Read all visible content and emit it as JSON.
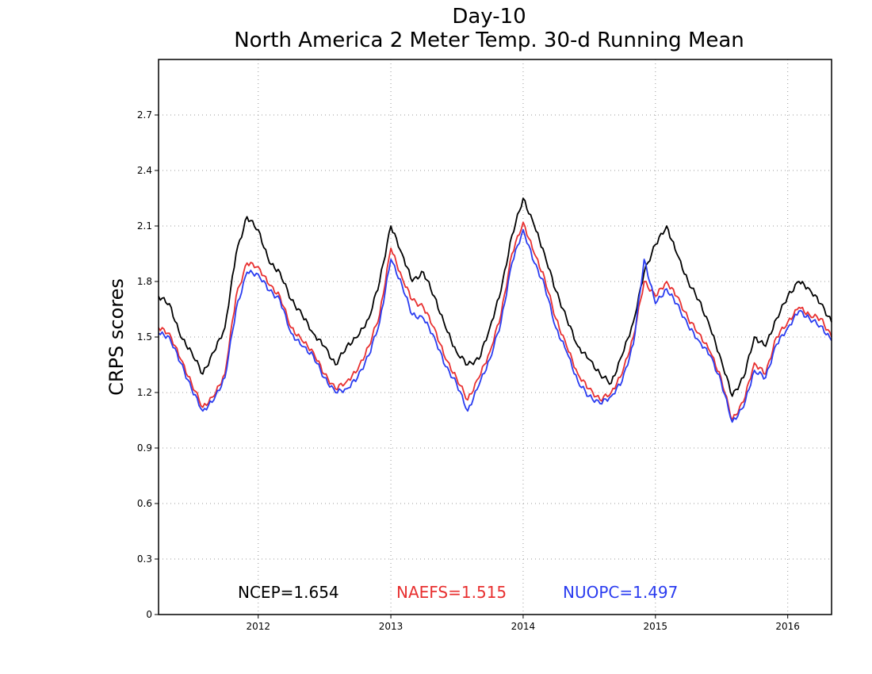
{
  "chart_data": {
    "type": "line",
    "title": "Day-10",
    "subtitle": "North America 2 Meter Temp. 30-d Running Mean",
    "xlabel": "",
    "ylabel": "CRPS scores",
    "ylim": [
      0,
      3.0
    ],
    "xlim": [
      "2011-04-01",
      "2016-05-01"
    ],
    "grid": true,
    "x_ticks": [
      "2012",
      "2013",
      "2014",
      "2015",
      "2016"
    ],
    "y_ticks": [
      "0",
      "0.3",
      "0.6",
      "0.9",
      "1.2",
      "1.5",
      "1.8",
      "2.1",
      "2.4",
      "2.7"
    ],
    "summary": [
      {
        "text": "NCEP=1.654",
        "color": "#000000"
      },
      {
        "text": "NAEFS=1.515",
        "color": "#e83030"
      },
      {
        "text": "NUOPC=1.497",
        "color": "#2a3cf0"
      }
    ],
    "x": [
      "2011-04-01",
      "2011-05-01",
      "2011-06-01",
      "2011-07-01",
      "2011-08-01",
      "2011-09-01",
      "2011-10-01",
      "2011-11-01",
      "2011-12-01",
      "2012-01-01",
      "2012-02-01",
      "2012-03-01",
      "2012-04-01",
      "2012-05-01",
      "2012-06-01",
      "2012-07-01",
      "2012-08-01",
      "2012-09-01",
      "2012-10-01",
      "2012-11-01",
      "2012-12-01",
      "2013-01-01",
      "2013-02-01",
      "2013-03-01",
      "2013-04-01",
      "2013-05-01",
      "2013-06-01",
      "2013-07-01",
      "2013-08-01",
      "2013-09-01",
      "2013-10-01",
      "2013-11-01",
      "2013-12-01",
      "2014-01-01",
      "2014-02-01",
      "2014-03-01",
      "2014-04-01",
      "2014-05-01",
      "2014-06-01",
      "2014-07-01",
      "2014-08-01",
      "2014-09-01",
      "2014-10-01",
      "2014-11-01",
      "2014-12-01",
      "2015-01-01",
      "2015-02-01",
      "2015-03-01",
      "2015-04-01",
      "2015-05-01",
      "2015-06-01",
      "2015-07-01",
      "2015-08-01",
      "2015-09-01",
      "2015-10-01",
      "2015-11-01",
      "2015-12-01",
      "2016-01-01",
      "2016-02-01",
      "2016-03-01",
      "2016-04-01",
      "2016-05-01"
    ],
    "series": [
      {
        "name": "NCEP",
        "color": "#000000",
        "values": [
          1.72,
          1.68,
          1.5,
          1.42,
          1.3,
          1.42,
          1.55,
          1.95,
          2.15,
          2.08,
          1.9,
          1.85,
          1.7,
          1.62,
          1.52,
          1.45,
          1.35,
          1.45,
          1.5,
          1.6,
          1.8,
          2.1,
          1.95,
          1.8,
          1.85,
          1.72,
          1.55,
          1.42,
          1.35,
          1.38,
          1.55,
          1.75,
          2.05,
          2.25,
          2.1,
          1.95,
          1.75,
          1.6,
          1.45,
          1.38,
          1.3,
          1.25,
          1.4,
          1.58,
          1.85,
          2.0,
          2.1,
          1.95,
          1.8,
          1.7,
          1.55,
          1.38,
          1.18,
          1.28,
          1.5,
          1.45,
          1.6,
          1.72,
          1.8,
          1.76,
          1.68,
          1.58
        ]
      },
      {
        "name": "NAEFS",
        "color": "#e83030",
        "values": [
          1.55,
          1.52,
          1.38,
          1.25,
          1.12,
          1.18,
          1.3,
          1.72,
          1.9,
          1.88,
          1.78,
          1.72,
          1.55,
          1.48,
          1.42,
          1.3,
          1.22,
          1.26,
          1.32,
          1.45,
          1.62,
          1.98,
          1.82,
          1.7,
          1.66,
          1.55,
          1.38,
          1.28,
          1.16,
          1.28,
          1.42,
          1.62,
          1.95,
          2.12,
          1.95,
          1.82,
          1.6,
          1.45,
          1.3,
          1.22,
          1.16,
          1.2,
          1.3,
          1.5,
          1.8,
          1.72,
          1.8,
          1.72,
          1.6,
          1.52,
          1.42,
          1.28,
          1.05,
          1.15,
          1.36,
          1.3,
          1.5,
          1.58,
          1.66,
          1.62,
          1.6,
          1.5
        ]
      },
      {
        "name": "NUOPC",
        "color": "#2a3cf0",
        "values": [
          1.52,
          1.5,
          1.36,
          1.22,
          1.1,
          1.16,
          1.28,
          1.65,
          1.85,
          1.84,
          1.75,
          1.7,
          1.52,
          1.45,
          1.4,
          1.28,
          1.2,
          1.22,
          1.28,
          1.4,
          1.58,
          1.92,
          1.78,
          1.62,
          1.6,
          1.5,
          1.34,
          1.25,
          1.1,
          1.24,
          1.38,
          1.58,
          1.9,
          2.08,
          1.9,
          1.78,
          1.55,
          1.42,
          1.26,
          1.18,
          1.14,
          1.18,
          1.26,
          1.46,
          1.92,
          1.68,
          1.76,
          1.68,
          1.56,
          1.48,
          1.4,
          1.26,
          1.04,
          1.12,
          1.32,
          1.28,
          1.46,
          1.55,
          1.64,
          1.6,
          1.56,
          1.48
        ]
      }
    ]
  }
}
